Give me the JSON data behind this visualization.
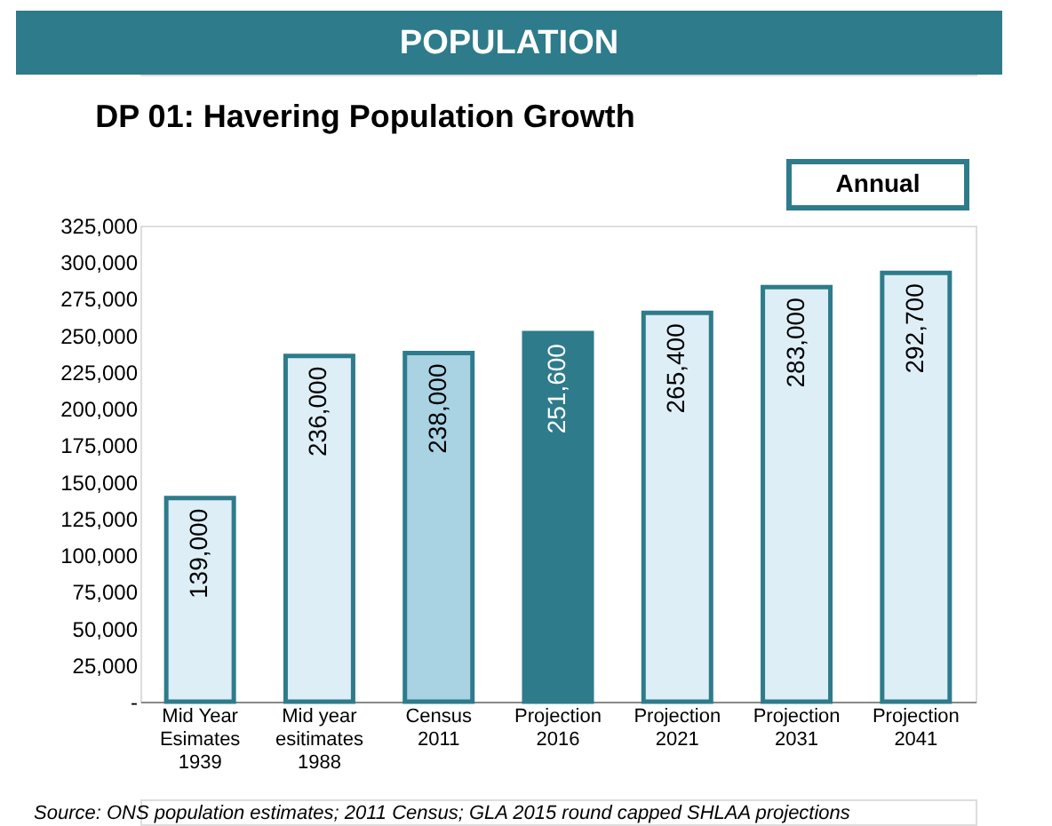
{
  "chart_data": {
    "type": "bar",
    "title": "POPULATION",
    "subtitle": "DP 01: Havering Population Growth",
    "categories": [
      "Mid Year\nEsimates\n1939",
      "Mid year\nesitimates\n1988",
      "Census\n2011",
      "Projection\n2016",
      "Projection\n2021",
      "Projection\n2031",
      "Projection\n2041"
    ],
    "values": [
      139000,
      236000,
      238000,
      251600,
      265400,
      283000,
      292700
    ],
    "value_labels": [
      "139,000",
      "236,000",
      "238,000",
      "251,600",
      "265,400",
      "283,000",
      "292,700"
    ],
    "colors": [
      "#ddeef6",
      "#ddeef6",
      "#a9d2e3",
      "#2e7b8b",
      "#ddeef6",
      "#ddeef6",
      "#ddeef6"
    ],
    "ylim": [
      0,
      325000
    ],
    "yticks": [
      {
        "value": 0,
        "label": "-"
      },
      {
        "value": 25000,
        "label": "25,000"
      },
      {
        "value": 50000,
        "label": "50,000"
      },
      {
        "value": 75000,
        "label": "75,000"
      },
      {
        "value": 100000,
        "label": "100,000"
      },
      {
        "value": 125000,
        "label": "125,000"
      },
      {
        "value": 150000,
        "label": "150,000"
      },
      {
        "value": 175000,
        "label": "175,000"
      },
      {
        "value": 200000,
        "label": "200,000"
      },
      {
        "value": 225000,
        "label": "225,000"
      },
      {
        "value": 250000,
        "label": "250,000"
      },
      {
        "value": 275000,
        "label": "275,000"
      },
      {
        "value": 300000,
        "label": "300,000"
      },
      {
        "value": 325000,
        "label": "325,000"
      }
    ],
    "grid": false,
    "annotations": [
      "Annual",
      "Source: ONS population estimates; 2011 Census; GLA 2015 round capped SHLAA projections"
    ]
  }
}
